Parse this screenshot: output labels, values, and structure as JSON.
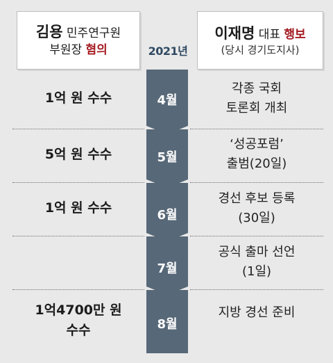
{
  "header": {
    "left": {
      "name": "김용",
      "title": "민주연구원",
      "line2": "부원장",
      "charge": "혐의"
    },
    "right": {
      "name": "이재명",
      "title": "대표",
      "charge": "행보",
      "sub": "(당시 경기도지사)"
    },
    "year": "2021년"
  },
  "rows": [
    {
      "month": "4월",
      "left": [
        "1억 원 수수"
      ],
      "right": [
        "각종 국회",
        "토론회 개최"
      ]
    },
    {
      "month": "5월",
      "left": [
        "5억 원 수수"
      ],
      "right": [
        "‘성공포럼’",
        "출범(20일)"
      ]
    },
    {
      "month": "6월",
      "left": [
        "1억 원 수수"
      ],
      "right": [
        "경선 후보 등록",
        "(30일)"
      ]
    },
    {
      "month": "7월",
      "left": [],
      "right": [
        "공식 출마 선언",
        "(1일)"
      ]
    },
    {
      "month": "8월",
      "left": [
        "1억4700만 원",
        "수수"
      ],
      "right": [
        "지방 경선 준비"
      ]
    }
  ],
  "colors": {
    "spine": "#576878",
    "accent_red": "#a41b22",
    "year_text": "#2f4a62",
    "background": "#e9e9e9"
  }
}
